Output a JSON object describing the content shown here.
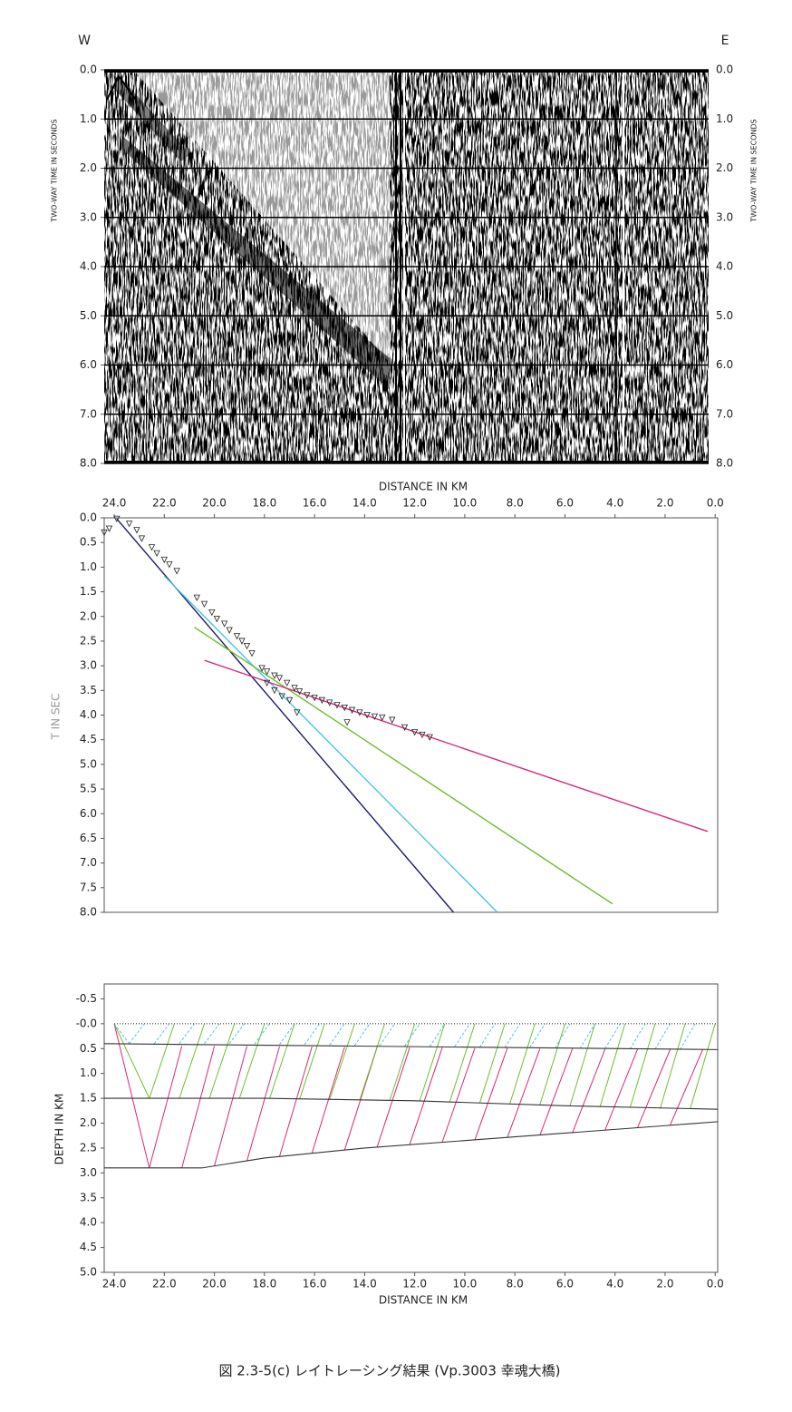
{
  "chart_data": [
    {
      "type": "seismic-section",
      "labels": {
        "west": "W",
        "east": "E"
      },
      "ylabel": "TWO-WAY TIME IN SECONDS",
      "ylim": [
        0,
        8
      ],
      "yticks": [
        {
          "value": 0,
          "label": "0.0"
        },
        {
          "value": 1,
          "label": "1.0"
        },
        {
          "value": 2,
          "label": "2.0"
        },
        {
          "value": 3,
          "label": "3.0"
        },
        {
          "value": 4,
          "label": "4.0"
        },
        {
          "value": 5,
          "label": "5.0"
        },
        {
          "value": 6,
          "label": "6.0"
        },
        {
          "value": 7,
          "label": "7.0"
        },
        {
          "value": 8,
          "label": "8.0"
        }
      ],
      "grid": true
    },
    {
      "type": "line",
      "xlabel": "DISTANCE IN KM",
      "ylabel": "T IN SEC",
      "xlim": [
        24.4,
        -0.1
      ],
      "ylim": [
        0,
        8
      ],
      "xticks": [
        {
          "value": 24,
          "label": "24.0"
        },
        {
          "value": 22,
          "label": "22.0"
        },
        {
          "value": 20,
          "label": "20.0"
        },
        {
          "value": 18,
          "label": "18.0"
        },
        {
          "value": 16,
          "label": "16.0"
        },
        {
          "value": 14,
          "label": "14.0"
        },
        {
          "value": 12,
          "label": "12.0"
        },
        {
          "value": 10,
          "label": "10.0"
        },
        {
          "value": 8,
          "label": "8.0"
        },
        {
          "value": 6,
          "label": "6.0"
        },
        {
          "value": 4,
          "label": "4.0"
        },
        {
          "value": 2,
          "label": "2.0"
        },
        {
          "value": 0,
          "label": "0.0"
        }
      ],
      "yticks": [
        {
          "value": 0,
          "label": "0.0"
        },
        {
          "value": 0.5,
          "label": "0.5"
        },
        {
          "value": 1,
          "label": "1.0"
        },
        {
          "value": 1.5,
          "label": "1.5"
        },
        {
          "value": 2,
          "label": "2.0"
        },
        {
          "value": 2.5,
          "label": "2.5"
        },
        {
          "value": 3,
          "label": "3.0"
        },
        {
          "value": 3.5,
          "label": "3.5"
        },
        {
          "value": 4,
          "label": "4.0"
        },
        {
          "value": 4.5,
          "label": "4.5"
        },
        {
          "value": 5,
          "label": "5.0"
        },
        {
          "value": 5.5,
          "label": "5.5"
        },
        {
          "value": 6,
          "label": "6.0"
        },
        {
          "value": 6.5,
          "label": "6.5"
        },
        {
          "value": 7,
          "label": "7.0"
        },
        {
          "value": 7.5,
          "label": "7.5"
        },
        {
          "value": 8,
          "label": "8.0"
        }
      ],
      "series": [
        {
          "color": "#1b1b6e",
          "x": [
            23.9,
            10.45
          ],
          "values": [
            0.02,
            8.0
          ]
        },
        {
          "color": "#4cc3e8",
          "x": [
            22.0,
            8.7
          ],
          "values": [
            1.18,
            8.0
          ]
        },
        {
          "color": "#6cbf2e",
          "x": [
            20.8,
            4.1
          ],
          "values": [
            2.22,
            7.83
          ]
        },
        {
          "color": "#d8287a",
          "x": [
            20.4,
            0.3
          ],
          "values": [
            2.89,
            6.36
          ]
        }
      ],
      "points": {
        "color": "#222",
        "x": [
          24.4,
          24.2,
          23.9,
          23.4,
          23.1,
          22.9,
          22.5,
          22.3,
          22.0,
          21.8,
          21.5,
          20.7,
          20.4,
          20.1,
          19.9,
          19.6,
          19.4,
          19.1,
          18.9,
          18.7,
          18.5,
          18.1,
          17.9,
          17.6,
          17.4,
          17.1,
          16.8,
          16.6,
          16.3,
          16.0,
          15.7,
          15.4,
          15.1,
          14.8,
          14.5,
          14.2,
          13.9,
          13.6,
          13.3,
          12.9,
          12.4,
          12.0,
          11.7,
          11.4,
          17.9,
          17.6,
          17.3,
          17.0,
          16.7,
          14.7
        ],
        "values": [
          0.3,
          0.22,
          0.02,
          0.12,
          0.25,
          0.42,
          0.6,
          0.72,
          0.85,
          0.95,
          1.08,
          1.62,
          1.75,
          1.92,
          2.05,
          2.15,
          2.28,
          2.4,
          2.5,
          2.6,
          2.75,
          3.05,
          3.12,
          3.2,
          3.25,
          3.35,
          3.45,
          3.52,
          3.6,
          3.65,
          3.7,
          3.75,
          3.8,
          3.85,
          3.9,
          3.95,
          4.0,
          4.03,
          4.05,
          4.1,
          4.25,
          4.35,
          4.4,
          4.45,
          3.35,
          3.5,
          3.62,
          3.7,
          3.95,
          4.15
        ]
      }
    },
    {
      "type": "ray-model",
      "xlabel": "DISTANCE IN KM",
      "ylabel": "DEPTH IN KM",
      "xlim": [
        24.4,
        -0.1
      ],
      "ylim": [
        -0.8,
        5.0
      ],
      "xticks": [
        {
          "value": 24,
          "label": "24.0"
        },
        {
          "value": 22,
          "label": "22.0"
        },
        {
          "value": 20,
          "label": "20.0"
        },
        {
          "value": 18,
          "label": "18.0"
        },
        {
          "value": 16,
          "label": "16.0"
        },
        {
          "value": 14,
          "label": "14.0"
        },
        {
          "value": 12,
          "label": "12.0"
        },
        {
          "value": 10,
          "label": "10.0"
        },
        {
          "value": 8,
          "label": "8.0"
        },
        {
          "value": 6,
          "label": "6.0"
        },
        {
          "value": 4,
          "label": "4.0"
        },
        {
          "value": 2,
          "label": "2.0"
        },
        {
          "value": 0,
          "label": "0.0"
        }
      ],
      "yticks": [
        {
          "value": -0.5,
          "label": "-0.5"
        },
        {
          "value": 0,
          "label": "-0.0"
        },
        {
          "value": 0.5,
          "label": "0.5"
        },
        {
          "value": 1,
          "label": "1.0"
        },
        {
          "value": 1.5,
          "label": "1.5"
        },
        {
          "value": 2,
          "label": "2.0"
        },
        {
          "value": 2.5,
          "label": "2.5"
        },
        {
          "value": 3,
          "label": "3.0"
        },
        {
          "value": 3.5,
          "label": "3.5"
        },
        {
          "value": 4,
          "label": "4.0"
        },
        {
          "value": 4.5,
          "label": "4.5"
        },
        {
          "value": 5,
          "label": "5.0"
        }
      ],
      "boundaries": [
        {
          "color": "#333",
          "dashed": true,
          "x": [
            24.0,
            -0.1
          ],
          "values": [
            0,
            0
          ]
        },
        {
          "color": "#333",
          "dashed": false,
          "x": [
            24.4,
            -0.1
          ],
          "values": [
            0.4,
            0.52
          ]
        },
        {
          "color": "#333",
          "dashed": false,
          "x": [
            24.4,
            18,
            12,
            6,
            -0.1
          ],
          "values": [
            1.5,
            1.5,
            1.55,
            1.65,
            1.72
          ]
        },
        {
          "color": "#333",
          "dashed": false,
          "x": [
            24.4,
            20.5,
            18,
            14,
            10,
            6,
            2,
            -0.1
          ],
          "values": [
            2.9,
            2.9,
            2.7,
            2.5,
            2.35,
            2.2,
            2.05,
            1.97
          ]
        }
      ],
      "rays": [
        {
          "color": "#d8287a",
          "dashed": false,
          "segments": [
            [
              24.0,
              0.0,
              22.6,
              2.9
            ],
            [
              22.6,
              2.9,
              21.3,
              0.45
            ],
            [
              21.3,
              2.9,
              20.0,
              0.45
            ],
            [
              20.0,
              2.86,
              18.7,
              0.45
            ],
            [
              18.7,
              2.76,
              17.4,
              0.46
            ],
            [
              17.4,
              2.67,
              16.1,
              0.46
            ],
            [
              16.1,
              2.6,
              14.8,
              0.47
            ],
            [
              14.8,
              2.54,
              13.5,
              0.47
            ],
            [
              13.5,
              2.48,
              12.2,
              0.48
            ],
            [
              12.2,
              2.43,
              10.9,
              0.48
            ],
            [
              10.9,
              2.38,
              9.6,
              0.49
            ],
            [
              9.6,
              2.34,
              8.3,
              0.49
            ],
            [
              8.3,
              2.29,
              7.0,
              0.5
            ],
            [
              7.0,
              2.24,
              5.7,
              0.5
            ],
            [
              5.7,
              2.19,
              4.4,
              0.51
            ],
            [
              4.4,
              2.14,
              3.1,
              0.51
            ],
            [
              3.1,
              2.09,
              1.8,
              0.52
            ],
            [
              1.8,
              2.04,
              0.5,
              0.52
            ]
          ]
        },
        {
          "color": "#6cbf2e",
          "dashed": false,
          "segments": [
            [
              24.0,
              0.0,
              22.6,
              1.5
            ],
            [
              22.6,
              1.5,
              21.6,
              0.0
            ],
            [
              21.4,
              1.5,
              20.4,
              0.0
            ],
            [
              20.2,
              1.5,
              19.2,
              0.0
            ],
            [
              19.0,
              1.5,
              18.0,
              0.0
            ],
            [
              17.8,
              1.51,
              16.8,
              0.0
            ],
            [
              16.6,
              1.52,
              15.6,
              0.0
            ],
            [
              15.4,
              1.53,
              14.4,
              0.0
            ],
            [
              14.2,
              1.54,
              13.2,
              0.0
            ],
            [
              13.0,
              1.55,
              12.0,
              0.0
            ],
            [
              11.8,
              1.55,
              10.8,
              0.0
            ],
            [
              10.6,
              1.57,
              9.6,
              0.0
            ],
            [
              9.4,
              1.59,
              8.4,
              0.0
            ],
            [
              8.2,
              1.61,
              7.2,
              0.0
            ],
            [
              7.0,
              1.63,
              6.0,
              0.0
            ],
            [
              5.8,
              1.65,
              4.8,
              0.0
            ],
            [
              4.6,
              1.67,
              3.6,
              0.0
            ],
            [
              3.4,
              1.69,
              2.4,
              0.0
            ],
            [
              2.2,
              1.71,
              1.2,
              0.0
            ],
            [
              1.0,
              1.72,
              0.0,
              0.0
            ]
          ]
        },
        {
          "color": "#4cc3e8",
          "dashed": true,
          "segments": [
            [
              24.0,
              0.0,
              23.4,
              0.4
            ],
            [
              23.4,
              0.4,
              22.8,
              0.0
            ],
            [
              22.4,
              0.4,
              21.8,
              0.0
            ],
            [
              21.4,
              0.4,
              20.8,
              0.0
            ],
            [
              20.4,
              0.4,
              19.8,
              0.0
            ],
            [
              19.4,
              0.4,
              18.8,
              0.0
            ],
            [
              18.4,
              0.41,
              17.8,
              0.0
            ],
            [
              17.4,
              0.42,
              16.8,
              0.0
            ],
            [
              16.4,
              0.42,
              15.8,
              0.0
            ],
            [
              15.4,
              0.43,
              14.8,
              0.0
            ],
            [
              14.4,
              0.44,
              13.8,
              0.0
            ],
            [
              13.4,
              0.44,
              12.8,
              0.0
            ],
            [
              12.4,
              0.45,
              11.8,
              0.0
            ],
            [
              11.4,
              0.46,
              10.8,
              0.0
            ],
            [
              10.4,
              0.46,
              9.8,
              0.0
            ],
            [
              9.4,
              0.47,
              8.8,
              0.0
            ],
            [
              8.4,
              0.48,
              7.8,
              0.0
            ],
            [
              7.4,
              0.48,
              6.8,
              0.0
            ],
            [
              6.4,
              0.49,
              5.8,
              0.0
            ],
            [
              5.4,
              0.5,
              4.8,
              0.0
            ],
            [
              4.4,
              0.5,
              3.8,
              0.0
            ],
            [
              3.4,
              0.51,
              2.8,
              0.0
            ],
            [
              2.4,
              0.51,
              1.8,
              0.0
            ],
            [
              1.4,
              0.52,
              0.8,
              0.0
            ]
          ]
        }
      ]
    }
  ],
  "caption": "図 2.3-5(c)  レイトレーシング結果 (Vp.3003 幸魂大橋)"
}
